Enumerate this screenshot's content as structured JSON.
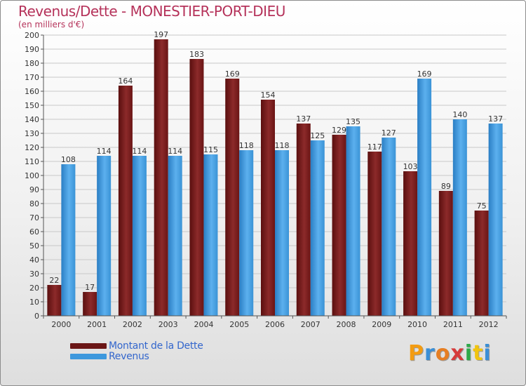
{
  "chart_data": {
    "type": "bar",
    "title": "Revenus/Dette - MONESTIER-PORT-DIEU",
    "subtitle": "(en milliers d'€)",
    "categories": [
      "2000",
      "2001",
      "2002",
      "2003",
      "2004",
      "2005",
      "2006",
      "2007",
      "2008",
      "2009",
      "2010",
      "2011",
      "2012"
    ],
    "series": [
      {
        "name": "Montant de la Dette",
        "color": "#7a1e1e",
        "values": [
          22,
          17,
          164,
          197,
          183,
          169,
          154,
          137,
          129,
          117,
          103,
          89,
          75
        ]
      },
      {
        "name": "Revenus",
        "color": "#3d98dd",
        "values": [
          108,
          114,
          114,
          114,
          115,
          118,
          118,
          125,
          135,
          127,
          169,
          140,
          137
        ]
      }
    ],
    "ylim": [
      0,
      200
    ],
    "ytick_step": 10,
    "xlabel": "",
    "ylabel": "",
    "legend": "bottom-left"
  },
  "logo": {
    "letters": [
      "P",
      "r",
      "o",
      "x",
      "i",
      "t",
      "i"
    ],
    "colors": [
      "#f39c12",
      "#3b8fd6",
      "#e67e22",
      "#d63a3a",
      "#2eaa4a",
      "#f1c40f",
      "#3b8fd6"
    ]
  }
}
